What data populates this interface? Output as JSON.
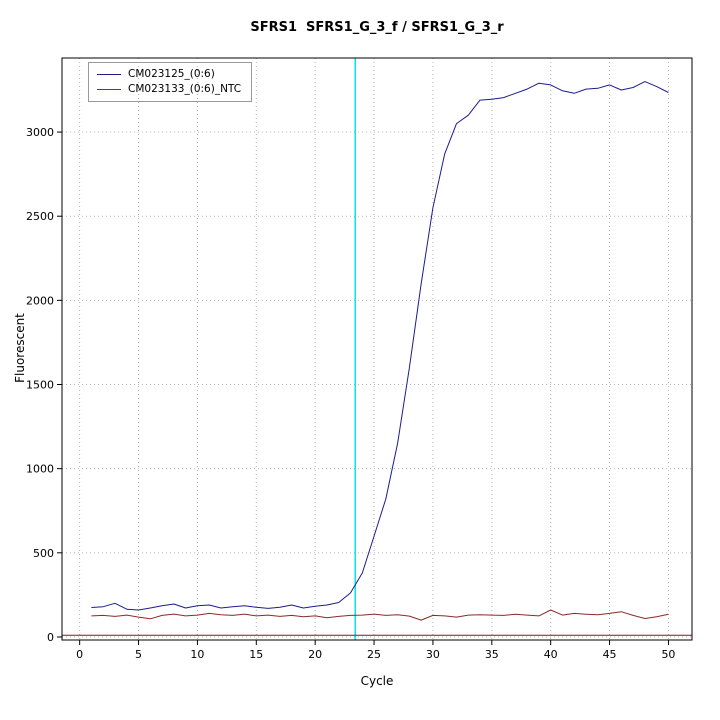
{
  "title": "SFRS1  SFRS1_G_3_f / SFRS1_G_3_r",
  "chart_data": {
    "type": "line",
    "title": "SFRS1  SFRS1_G_3_f / SFRS1_G_3_r",
    "xlabel": "Cycle",
    "ylabel": "Fluorescent",
    "xlim": [
      -1.5,
      52
    ],
    "ylim": [
      -18,
      3440
    ],
    "xticks": [
      0,
      5,
      10,
      15,
      20,
      25,
      30,
      35,
      40,
      45,
      50
    ],
    "yticks": [
      0,
      500,
      1000,
      1500,
      2000,
      2500,
      3000
    ],
    "grid": true,
    "legend_position": "top-left",
    "x": [
      1,
      2,
      3,
      4,
      5,
      6,
      7,
      8,
      9,
      10,
      11,
      12,
      13,
      14,
      15,
      16,
      17,
      18,
      19,
      20,
      21,
      22,
      23,
      24,
      25,
      26,
      27,
      28,
      29,
      30,
      31,
      32,
      33,
      34,
      35,
      36,
      37,
      38,
      39,
      40,
      41,
      42,
      43,
      44,
      45,
      46,
      47,
      48,
      49,
      50
    ],
    "series": [
      {
        "name": "CM023125_(0:6)",
        "color": "#1c1c8f",
        "values": [
          175,
          180,
          200,
          165,
          160,
          172,
          185,
          196,
          172,
          186,
          190,
          172,
          180,
          186,
          176,
          170,
          176,
          190,
          172,
          182,
          190,
          205,
          262,
          380,
          600,
          820,
          1150,
          1600,
          2100,
          2550,
          2870,
          3050,
          3100,
          3190,
          3195,
          3205,
          3230,
          3255,
          3290,
          3280,
          3245,
          3230,
          3255,
          3260,
          3280,
          3250,
          3265,
          3300,
          3270,
          3235
        ]
      },
      {
        "name": "CM023133_(0:6)_NTC",
        "color": "#8b2a2a",
        "values": [
          125,
          128,
          122,
          130,
          118,
          108,
          128,
          136,
          125,
          130,
          140,
          132,
          128,
          136,
          125,
          130,
          122,
          128,
          120,
          125,
          114,
          122,
          128,
          130,
          136,
          128,
          132,
          124,
          100,
          128,
          125,
          118,
          130,
          132,
          130,
          128,
          135,
          130,
          125,
          160,
          130,
          140,
          135,
          132,
          140,
          150,
          128,
          110,
          120,
          135
        ]
      }
    ],
    "threshold_line": {
      "y": 10,
      "color": "#7a1f1f"
    },
    "ct_line": {
      "x": 23.4,
      "color": "#00e5ee"
    },
    "grid_color": "#b4b4b4",
    "axis_color": "#000000"
  }
}
